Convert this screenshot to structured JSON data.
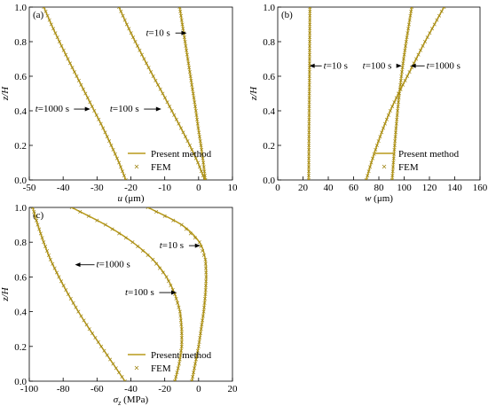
{
  "colors": {
    "curve": "#b89a1a",
    "marker": "#a08614",
    "axis": "#000000",
    "arrow": "#000000"
  },
  "legend": {
    "line_label": "Present method",
    "marker_label": "FEM",
    "placement": "bottom-right"
  },
  "chart_data": [
    {
      "id": "a",
      "type": "line",
      "panel_label": "(a)",
      "xlabel": "u (μm)",
      "xlabel_var": "u",
      "xlabel_unit": " (μm)",
      "ylabel": "z/H",
      "xlim": [
        -50,
        10
      ],
      "ylim": [
        0,
        1.0
      ],
      "xticks": [
        -50,
        -40,
        -30,
        -20,
        -10,
        0,
        10
      ],
      "yticks": [
        0.0,
        0.2,
        0.4,
        0.6,
        0.8,
        1.0
      ],
      "series": [
        {
          "annotation": "t=1000 s",
          "x": [
            -21.5,
            -23.5,
            -25.8,
            -28.2,
            -30.8,
            -33.4,
            -36.0,
            -38.6,
            -41.1,
            -43.5,
            -45.7
          ],
          "y": [
            0.0,
            0.1,
            0.2,
            0.3,
            0.4,
            0.5,
            0.6,
            0.7,
            0.8,
            0.9,
            1.0
          ]
        },
        {
          "annotation": "t=100 s",
          "x": [
            1.8,
            -0.2,
            -2.6,
            -5.2,
            -7.9,
            -10.6,
            -13.4,
            -16.1,
            -18.7,
            -21.2,
            -23.5
          ],
          "y": [
            0.0,
            0.1,
            0.2,
            0.3,
            0.4,
            0.5,
            0.6,
            0.7,
            0.8,
            0.9,
            1.0
          ]
        },
        {
          "annotation": "t=10 s",
          "x": [
            2.0,
            1.4,
            0.7,
            -0.1,
            -0.8,
            -1.6,
            -2.4,
            -3.2,
            -4.0,
            -4.8,
            -5.6
          ],
          "y": [
            0.0,
            0.1,
            0.2,
            0.3,
            0.4,
            0.5,
            0.6,
            0.7,
            0.8,
            0.9,
            1.0
          ]
        }
      ],
      "annotations": [
        {
          "text": "t=1000 s",
          "x": -32,
          "y": 0.41
        },
        {
          "text": "t=100 s",
          "x": -11,
          "y": 0.41
        },
        {
          "text": "t=10 s",
          "x": -3.5,
          "y": 0.85
        }
      ],
      "has_legend": true
    },
    {
      "id": "b",
      "type": "line",
      "panel_label": "(b)",
      "xlabel": "w (μm)",
      "xlabel_var": "w",
      "xlabel_unit": " (μm)",
      "ylabel": "z/H",
      "xlim": [
        0,
        160
      ],
      "ylim": [
        0,
        1.0
      ],
      "xticks": [
        0,
        20,
        40,
        60,
        80,
        100,
        120,
        140,
        160
      ],
      "yticks": [
        0.0,
        0.2,
        0.4,
        0.6,
        0.8,
        1.0
      ],
      "series": [
        {
          "annotation": "t=10 s",
          "x": [
            24.5,
            24.6,
            24.7,
            24.8,
            24.9,
            25.0,
            25.1,
            25.2,
            25.3,
            25.4,
            25.5
          ],
          "y": [
            0.0,
            0.1,
            0.2,
            0.3,
            0.4,
            0.5,
            0.6,
            0.7,
            0.8,
            0.9,
            1.0
          ]
        },
        {
          "annotation": "t=100 s",
          "x": [
            90.5,
            91.5,
            92.5,
            93.6,
            94.8,
            96.2,
            97.8,
            99.6,
            101.6,
            103.8,
            106.0
          ],
          "y": [
            0.0,
            0.1,
            0.2,
            0.3,
            0.4,
            0.5,
            0.6,
            0.7,
            0.8,
            0.9,
            1.0
          ]
        },
        {
          "annotation": "t=1000 s",
          "x": [
            70.0,
            74.0,
            78.5,
            83.5,
            89.0,
            95.5,
            102.5,
            109.5,
            116.5,
            124.0,
            131.5
          ],
          "y": [
            0.0,
            0.1,
            0.2,
            0.3,
            0.4,
            0.5,
            0.6,
            0.7,
            0.8,
            0.9,
            1.0
          ]
        }
      ],
      "annotations": [
        {
          "text": "t=10 s",
          "x": 25,
          "y": 0.66
        },
        {
          "text": "t=100 s",
          "x": 98,
          "y": 0.66
        },
        {
          "text": "t=1000 s",
          "x": 105,
          "y": 0.66
        }
      ],
      "has_legend": true
    },
    {
      "id": "c",
      "type": "line",
      "panel_label": "(c)",
      "xlabel": "σz (MPa)",
      "xlabel_var": "σ",
      "xlabel_sub": "z",
      "xlabel_unit": " (MPa)",
      "ylabel": "z/H",
      "xlim": [
        -100,
        20
      ],
      "ylim": [
        0,
        1.0
      ],
      "xticks": [
        -100,
        -80,
        -60,
        -40,
        -20,
        0,
        20
      ],
      "yticks": [
        0.0,
        0.2,
        0.4,
        0.6,
        0.8,
        1.0
      ],
      "series": [
        {
          "annotation": "t=1000 s",
          "x": [
            -43.5,
            -50.5,
            -57.5,
            -64.5,
            -71.0,
            -77.0,
            -82.5,
            -87.5,
            -91.5,
            -95.0,
            -98.0
          ],
          "y": [
            0.0,
            0.1,
            0.2,
            0.3,
            0.4,
            0.5,
            0.6,
            0.7,
            0.8,
            0.9,
            1.0
          ]
        },
        {
          "annotation": "t=100 s",
          "x": [
            -14.0,
            -11.5,
            -10.0,
            -10.0,
            -11.0,
            -14.0,
            -19.0,
            -27.0,
            -39.0,
            -55.0,
            -75.0
          ],
          "y": [
            0.0,
            0.1,
            0.2,
            0.3,
            0.4,
            0.5,
            0.6,
            0.7,
            0.8,
            0.9,
            1.0
          ]
        },
        {
          "annotation": "t=10 s",
          "x": [
            -4.0,
            -2.0,
            0.0,
            1.5,
            3.0,
            4.0,
            4.5,
            4.0,
            0.5,
            -10.0,
            -30.0
          ],
          "y": [
            0.0,
            0.1,
            0.2,
            0.3,
            0.4,
            0.5,
            0.6,
            0.7,
            0.8,
            0.9,
            1.0
          ]
        }
      ],
      "annotations": [
        {
          "text": "t=1000 s",
          "x": -73,
          "y": 0.67
        },
        {
          "text": "t=100 s",
          "x": -13,
          "y": 0.51
        },
        {
          "text": "t=10 s",
          "x": 1,
          "y": 0.78
        }
      ],
      "has_legend": true
    }
  ]
}
